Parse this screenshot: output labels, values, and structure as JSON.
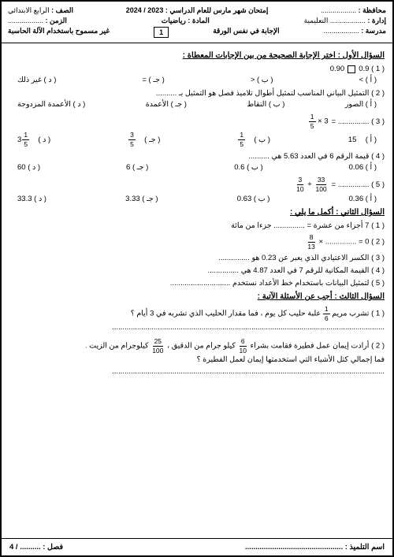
{
  "header": {
    "gov_lbl": "محافظة :",
    "gov_val": "..................",
    "exam_title": "إمتحان شهر مارس للعام الدراسي :",
    "year": "2023 / 2024",
    "grade_lbl": "الصف :",
    "grade_val": "الرابع الابتدائي",
    "admin_lbl": "إدارة :",
    "admin_val": "..................",
    "admin2_val": "التعليمية",
    "subject_lbl": "المادة :",
    "subject_val": "رياضيات",
    "time_lbl": "الزمن :",
    "time_val": "..................",
    "school_lbl": "مدرسة :",
    "school_val": "..................",
    "answer_note": "الإجابة في نفس الورقة",
    "calc_note": "غير مسموح باستخدام الآلة الحاسبة",
    "page_idx": "1"
  },
  "q1": {
    "title": "السؤال الأول : اختر الإجابة الصحيحة من بين الإجابات المعطاة :",
    "items": [
      {
        "stem_r": "( 1 )  0.9",
        "stem_l": "0.90",
        "opts": [
          "( أ )    >",
          "( ب )    <",
          "( جـ )    =",
          "( د )   غير ذلك"
        ]
      },
      {
        "stem": "( 2 ) التمثيل البياني المناسب لتمثيل أطوال تلاميذ فصل هو التمثيل بـ ..........",
        "opts": [
          "( أ )   الصور",
          "( ب )   النقاط",
          "( جـ )   الأعمدة",
          "( د )   الأعمدة المزدوجة"
        ]
      },
      {
        "stem_pre": "( 3 ) ............... =",
        "frac_n": "1",
        "frac_d": "5",
        "stem_post": " × 3",
        "opts_mixed": true,
        "opts": [
          {
            "lbl": "( أ )",
            "val": "15"
          },
          {
            "lbl": "( ب )",
            "n": "1",
            "d": "5"
          },
          {
            "lbl": "( جـ )",
            "n": "3",
            "d": "5"
          },
          {
            "lbl": "( د )",
            "whole": "3",
            "n": "1",
            "d": "5"
          }
        ]
      },
      {
        "stem": "( 4 ) قيمة الرقم 6 في العدد 5.63 هي ..........",
        "opts": [
          "( أ )   0.06",
          "( ب )   0.6",
          "( جـ )   6",
          "( د )   60"
        ]
      },
      {
        "stem_pre": "( 5 ) ............... =",
        "fr1_n": "3",
        "fr1_d": "10",
        "plus": " + ",
        "fr2_n": "33",
        "fr2_d": "100",
        "opts": [
          "( أ )   0.36",
          "( ب )   0.63",
          "( جـ )   3.33",
          "( د )   33.3"
        ]
      }
    ]
  },
  "q2": {
    "title": "السؤال الثاني : أكمل ما يلي :",
    "i1": "( 1 )  7 أجزاء من عشرة  =  ............... جزءا من مائة",
    "i2_pre": "( 2 )  0  =  ............... ×",
    "i2_n": "8",
    "i2_d": "13",
    "i3": "( 3 ) الكسر الاعتيادي الذي يعبر عن 0.23 هو ...............",
    "i4": "( 4 ) القيمة المكانية للرقم 7 في العدد 4.87 هي ...............",
    "i5": "( 5 ) لتمثيل البيانات باستخدام خط الأعداد نستخدم ............................."
  },
  "q3": {
    "title": "السؤال الثالث : أجب عن الأسئلة الآتية :",
    "p1_a": "( 1 ) تشرب مريم ",
    "p1_n": "1",
    "p1_d": "6",
    "p1_b": " علبة حليب كل يوم ،  فما مقدار الحليب الذي تشربه في 3 أيام ؟",
    "p1_ans": "...................................................................................................................................",
    "p2_a": "( 2 ) أرادت إيمان عمل فطيرة فقامت بشراء ",
    "p2_n1": "6",
    "p2_d1": "10",
    "p2_b": " كيلو جرام من الدقيق ، ",
    "p2_n2": "25",
    "p2_d2": "100",
    "p2_c": " كيلوجرام من الزيت .",
    "p2_q": "فما إجمالي كتل الأشياء التي استخدمتها إيمان لعمل الفطيرة ؟",
    "p2_ans": "..................................................................................................................................."
  },
  "footer": {
    "student_lbl": "اسم التلميذ :",
    "student_val": "...............................................",
    "class_lbl": "فصل :",
    "class_val": ".......... / 4"
  }
}
